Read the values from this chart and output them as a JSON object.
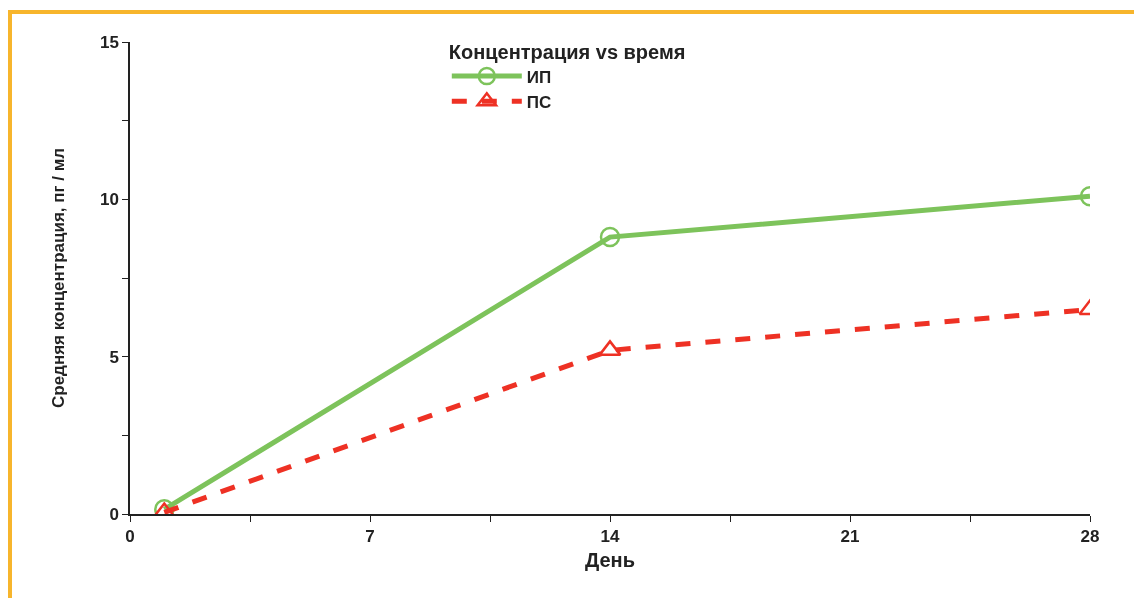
{
  "chart_data": {
    "type": "line",
    "legend_title": "Концентрация vs время",
    "xlabel": "День",
    "ylabel": "Средняя концентрация, пг / мл",
    "x": [
      1,
      14,
      28
    ],
    "series": [
      {
        "name": "ИП",
        "color": "#7dc35b",
        "values": [
          0.15,
          8.8,
          10.1
        ],
        "marker": "circle",
        "line_style": "solid"
      },
      {
        "name": "ПС",
        "color": "#ee3124",
        "values": [
          0.05,
          5.2,
          6.5
        ],
        "marker": "triangle",
        "line_style": "dashed"
      }
    ],
    "xlim": [
      0,
      28
    ],
    "xticks": [
      0,
      {
        "value": 3.5,
        "label": null
      },
      7,
      {
        "value": 10.5,
        "label": null
      },
      14,
      {
        "value": 17.5,
        "label": null
      },
      21,
      {
        "value": 24.5,
        "label": null
      },
      28
    ],
    "ylim": [
      0,
      15
    ],
    "yticks": [
      0,
      {
        "value": 2.5,
        "label": null
      },
      5,
      {
        "value": 7.5,
        "label": null
      },
      10,
      {
        "value": 12.5,
        "label": null
      },
      15
    ],
    "grid": false,
    "legend": "top"
  }
}
